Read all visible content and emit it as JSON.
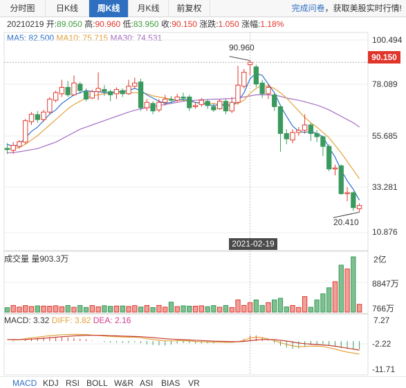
{
  "tabs": [
    {
      "label": "分时图",
      "active": false
    },
    {
      "label": "日K线",
      "active": false
    },
    {
      "label": "周K线",
      "active": true
    },
    {
      "label": "月K线",
      "active": false
    },
    {
      "label": "前复权",
      "active": false
    }
  ],
  "promo": {
    "part1": "完成问卷",
    "part2": "，获取美股实时行情!"
  },
  "quote": {
    "date": "20210219",
    "open_label": "开:",
    "open": "89.050",
    "high_label": "高:",
    "high": "90.960",
    "low_label": "低:",
    "low": "83.950",
    "close_label": "收:",
    "close": "90.150",
    "change_label": "涨跌:",
    "change": "1.050",
    "pct_label": "涨幅:",
    "pct": "1.18%"
  },
  "ma_legend": {
    "ma5": "MA5: 82.500",
    "ma10": "MA10: 75.715",
    "ma30": "MA30: 74.531"
  },
  "price_axis": [
    "100.494",
    "78.089",
    "55.685",
    "33.281",
    "10.876"
  ],
  "current_price": "90.150",
  "high_marker": "90.960",
  "low_marker": "20.410",
  "crosshair_date": "2021-02-19",
  "volume": {
    "label": "成交量 量903.3万",
    "axis": [
      "2亿",
      "8847万",
      "766万"
    ]
  },
  "macd": {
    "macd": "MACD: 3.32",
    "diff": "DIFF: 3.82",
    "dea": "DEA: 2.16",
    "axis": [
      "7.27",
      "-2.22",
      "-11.71"
    ]
  },
  "indicators": [
    {
      "label": "MACD",
      "active": true
    },
    {
      "label": "KDJ",
      "active": false
    },
    {
      "label": "RSI",
      "active": false
    },
    {
      "label": "BOLL",
      "active": false
    },
    {
      "label": "W&R",
      "active": false
    },
    {
      "label": "ASI",
      "active": false
    },
    {
      "label": "BIAS",
      "active": false
    },
    {
      "label": "VR",
      "active": false
    }
  ],
  "colors": {
    "up": "#e0352b",
    "down": "#3a9a5e",
    "ma5": "#2b70c9",
    "ma10": "#e2a13a",
    "ma30": "#a46dc4",
    "active_tab": "#2e6fc0"
  },
  "chart_data": {
    "type": "candlestick",
    "y_range": [
      10.876,
      100.494
    ],
    "candles": [
      {
        "o": 50.1,
        "c": 49.5,
        "h": 52.5,
        "l": 47.5
      },
      {
        "o": 49.2,
        "c": 51.5,
        "h": 53.0,
        "l": 47.5
      },
      {
        "o": 51.0,
        "c": 53.2,
        "h": 54.0,
        "l": 50.0
      },
      {
        "o": 53.0,
        "c": 63.0,
        "h": 63.8,
        "l": 52.0
      },
      {
        "o": 62.5,
        "c": 66.0,
        "h": 67.0,
        "l": 61.0
      },
      {
        "o": 65.8,
        "c": 63.5,
        "h": 67.5,
        "l": 62.0
      },
      {
        "o": 63.5,
        "c": 67.0,
        "h": 68.0,
        "l": 62.5
      },
      {
        "o": 67.0,
        "c": 73.0,
        "h": 74.0,
        "l": 66.0
      },
      {
        "o": 72.5,
        "c": 76.0,
        "h": 77.0,
        "l": 71.5
      },
      {
        "o": 75.5,
        "c": 78.5,
        "h": 82.0,
        "l": 74.0
      },
      {
        "o": 78.5,
        "c": 75.0,
        "h": 81.5,
        "l": 74.0
      },
      {
        "o": 75.0,
        "c": 80.5,
        "h": 84.0,
        "l": 74.5
      },
      {
        "o": 80.0,
        "c": 77.0,
        "h": 81.0,
        "l": 75.5
      },
      {
        "o": 76.5,
        "c": 73.0,
        "h": 78.0,
        "l": 72.0
      },
      {
        "o": 73.5,
        "c": 76.5,
        "h": 77.5,
        "l": 73.0
      },
      {
        "o": 76.5,
        "c": 78.0,
        "h": 85.5,
        "l": 72.5
      },
      {
        "o": 77.5,
        "c": 76.5,
        "h": 79.5,
        "l": 74.5
      },
      {
        "o": 76.5,
        "c": 75.0,
        "h": 77.5,
        "l": 72.0
      },
      {
        "o": 75.5,
        "c": 77.5,
        "h": 78.5,
        "l": 73.0
      },
      {
        "o": 77.0,
        "c": 75.5,
        "h": 78.0,
        "l": 74.0
      },
      {
        "o": 75.5,
        "c": 79.0,
        "h": 82.0,
        "l": 75.0
      },
      {
        "o": 79.0,
        "c": 80.5,
        "h": 83.0,
        "l": 78.0
      },
      {
        "o": 81.0,
        "c": 69.0,
        "h": 82.5,
        "l": 67.5
      },
      {
        "o": 69.0,
        "c": 71.5,
        "h": 73.0,
        "l": 67.5
      },
      {
        "o": 71.0,
        "c": 67.5,
        "h": 72.0,
        "l": 66.0
      },
      {
        "o": 68.0,
        "c": 71.5,
        "h": 73.0,
        "l": 67.0
      },
      {
        "o": 71.5,
        "c": 73.0,
        "h": 75.0,
        "l": 70.0
      },
      {
        "o": 73.0,
        "c": 72.5,
        "h": 74.5,
        "l": 71.0
      },
      {
        "o": 72.5,
        "c": 74.0,
        "h": 75.5,
        "l": 71.5
      },
      {
        "o": 74.0,
        "c": 73.5,
        "h": 76.0,
        "l": 72.0
      },
      {
        "o": 74.0,
        "c": 69.0,
        "h": 75.0,
        "l": 67.5
      },
      {
        "o": 69.5,
        "c": 70.0,
        "h": 71.5,
        "l": 68.5
      },
      {
        "o": 70.5,
        "c": 72.5,
        "h": 73.5,
        "l": 69.5
      },
      {
        "o": 72.0,
        "c": 70.0,
        "h": 73.0,
        "l": 68.5
      },
      {
        "o": 69.5,
        "c": 68.0,
        "h": 71.0,
        "l": 67.0
      },
      {
        "o": 68.5,
        "c": 72.0,
        "h": 73.0,
        "l": 68.0
      },
      {
        "o": 72.0,
        "c": 67.5,
        "h": 73.0,
        "l": 66.0
      },
      {
        "o": 67.5,
        "c": 71.5,
        "h": 74.0,
        "l": 66.5
      },
      {
        "o": 71.5,
        "c": 79.5,
        "h": 88.5,
        "l": 70.5
      },
      {
        "o": 79.0,
        "c": 85.5,
        "h": 87.0,
        "l": 78.0
      },
      {
        "o": 89.05,
        "c": 90.15,
        "h": 90.96,
        "l": 83.95
      },
      {
        "o": 88.0,
        "c": 80.0,
        "h": 89.0,
        "l": 78.5
      },
      {
        "o": 80.5,
        "c": 75.5,
        "h": 82.0,
        "l": 73.5
      },
      {
        "o": 75.5,
        "c": 78.5,
        "h": 80.0,
        "l": 73.0
      },
      {
        "o": 75.0,
        "c": 69.5,
        "h": 76.0,
        "l": 67.5
      },
      {
        "o": 69.5,
        "c": 57.0,
        "h": 70.5,
        "l": 48.5
      },
      {
        "o": 57.0,
        "c": 54.5,
        "h": 59.0,
        "l": 52.0
      },
      {
        "o": 54.0,
        "c": 57.5,
        "h": 59.0,
        "l": 52.5
      },
      {
        "o": 57.5,
        "c": 58.5,
        "h": 60.0,
        "l": 56.0
      },
      {
        "o": 58.5,
        "c": 61.0,
        "h": 66.0,
        "l": 57.0
      },
      {
        "o": 61.0,
        "c": 57.0,
        "h": 62.0,
        "l": 53.5
      },
      {
        "o": 57.0,
        "c": 55.5,
        "h": 58.5,
        "l": 53.0
      },
      {
        "o": 55.5,
        "c": 51.0,
        "h": 56.0,
        "l": 46.5
      },
      {
        "o": 51.0,
        "c": 40.5,
        "h": 52.0,
        "l": 39.5
      },
      {
        "o": 40.5,
        "c": 41.0,
        "h": 42.5,
        "l": 37.5
      },
      {
        "o": 42.0,
        "c": 29.0,
        "h": 42.5,
        "l": 28.5
      },
      {
        "o": 29.0,
        "c": 29.5,
        "h": 32.0,
        "l": 25.5
      },
      {
        "o": 29.5,
        "c": 22.5,
        "h": 30.0,
        "l": 21.0
      },
      {
        "o": 22.0,
        "c": 23.5,
        "h": 24.5,
        "l": 20.41
      }
    ],
    "ma5": [
      52,
      51,
      52,
      55,
      58,
      60,
      63,
      66,
      68,
      71,
      73,
      75,
      76,
      77,
      76.5,
      76.5,
      76,
      76,
      76.5,
      76.5,
      77,
      78,
      77,
      75,
      73.5,
      72,
      71,
      71.5,
      72.5,
      73,
      72.5,
      71.5,
      71,
      70.5,
      70,
      70.5,
      70,
      70,
      72,
      76,
      82.5,
      85,
      84,
      80,
      76,
      70,
      65,
      60.5,
      58,
      57.5,
      58,
      57,
      55.5,
      50.5,
      46,
      40,
      35,
      31,
      26
    ],
    "ma10": [
      50,
      50,
      50.5,
      52,
      54,
      56,
      58.5,
      61,
      63.5,
      66,
      68.5,
      70.5,
      72,
      73.5,
      74.5,
      75,
      75.5,
      76,
      76,
      76,
      76,
      76,
      76,
      75.5,
      74.5,
      74,
      73.5,
      73,
      72.5,
      72.5,
      72,
      71.5,
      71.5,
      71,
      71,
      70.5,
      70.5,
      70.5,
      71,
      72.5,
      75.7,
      78,
      79.5,
      79,
      78,
      76,
      73.5,
      70.5,
      67.5,
      64.5,
      62,
      60,
      57.5,
      55,
      51.5,
      48,
      44,
      40,
      36
    ],
    "ma30": [
      48,
      48.2,
      48.5,
      49,
      49.5,
      50,
      51,
      52,
      53,
      54.5,
      56,
      57.5,
      59,
      60,
      61,
      62,
      63,
      64,
      65,
      66,
      67,
      67.8,
      68.5,
      69,
      69.5,
      70,
      70.5,
      71,
      71.5,
      72,
      72.3,
      72.5,
      72.7,
      72.8,
      73,
      73,
      73.2,
      73.3,
      73.6,
      74,
      74.5,
      75,
      75,
      75,
      74.8,
      74.3,
      73.5,
      73,
      72.5,
      71.8,
      71,
      70.2,
      69.2,
      68,
      66.5,
      65,
      63.5,
      62,
      60
    ]
  }
}
